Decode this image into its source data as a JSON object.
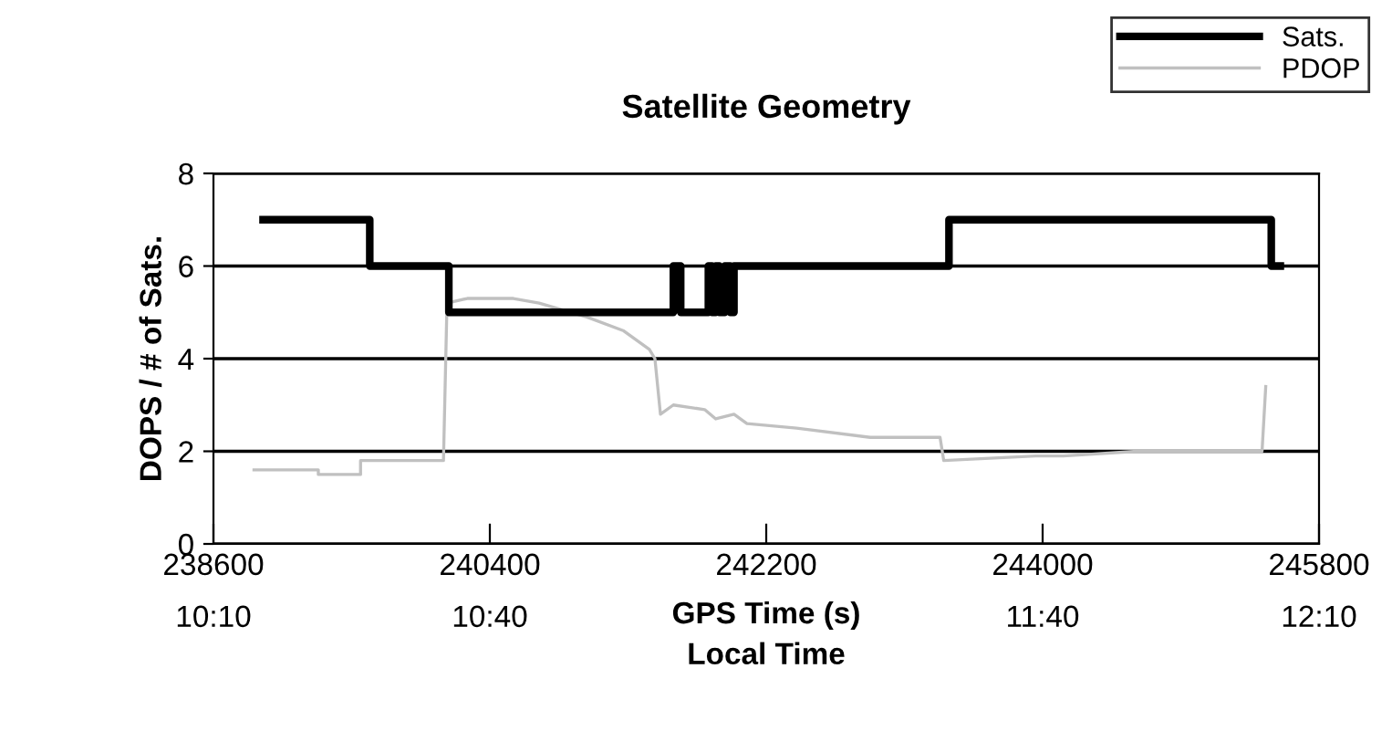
{
  "chart_data": {
    "type": "step",
    "title": "Satellite Geometry",
    "xlabel": "GPS Time (s)",
    "ylabel": "DOPS / # of Sats.",
    "x2label": "Local Time",
    "x2lim": [
      10.1667,
      12.1667
    ],
    "x2ticks": [
      {
        "value": 10.1667,
        "label": "10:10"
      },
      {
        "value": 10.6667,
        "label": "10:40"
      },
      {
        "value": 11.6667,
        "label": "11:40"
      },
      {
        "value": 12.1667,
        "label": "12:10"
      }
    ],
    "xlim": [
      238600,
      245800
    ],
    "xticks": [
      238600,
      240400,
      242200,
      244000,
      245800
    ],
    "ylim": [
      0,
      8
    ],
    "yticks": [
      0,
      2,
      4,
      6,
      8
    ],
    "grid": "y",
    "legend": "top right",
    "series": [
      {
        "name": "Sats.",
        "color": "#000000",
        "x": [
          238923,
          239618,
          240133,
          241595,
          241643,
          241823,
          241847,
          241871,
          241895,
          241930,
          241966,
          241990,
          242074,
          243390,
          245489,
          245548
        ],
        "values": [
          7,
          6,
          5,
          6,
          5,
          6,
          5,
          6,
          5,
          6,
          5,
          6,
          6,
          7,
          6,
          6
        ]
      },
      {
        "name": "PDOP",
        "type": "line",
        "color": "#c0c0c0",
        "x": [
          238864,
          239283,
          239283,
          239558,
          239558,
          240098,
          240121,
          240253,
          240553,
          240721,
          241032,
          241272,
          241439,
          241475,
          241511,
          241595,
          241799,
          241871,
          241990,
          242074,
          242398,
          242877,
          243332,
          243356,
          243955,
          244135,
          244614,
          245429,
          245453
        ],
        "values": [
          1.6,
          1.6,
          1.5,
          1.5,
          1.8,
          1.8,
          5.2,
          5.3,
          5.3,
          5.2,
          4.9,
          4.6,
          4.2,
          4.0,
          2.8,
          3.0,
          2.9,
          2.7,
          2.8,
          2.6,
          2.5,
          2.3,
          2.3,
          1.8,
          1.9,
          1.9,
          2.0,
          2.0,
          3.4
        ]
      }
    ]
  }
}
